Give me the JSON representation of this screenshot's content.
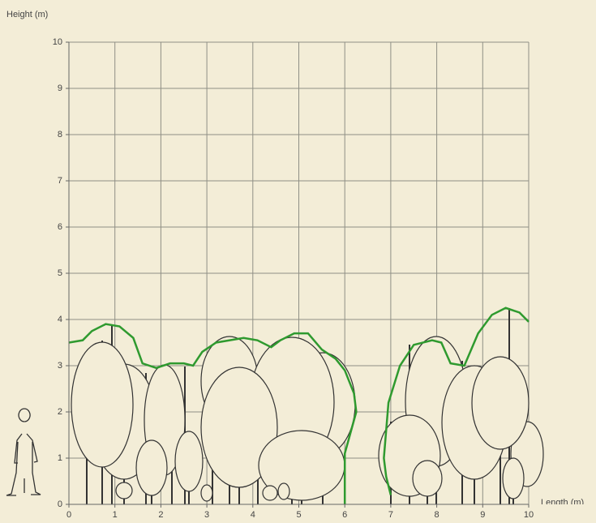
{
  "chart_data": {
    "type": "line",
    "y_label": "Height (m)",
    "x_label": "Length (m)",
    "xlim": [
      0,
      10
    ],
    "ylim": [
      0,
      10
    ],
    "xticks": [
      0,
      1,
      2,
      3,
      4,
      5,
      6,
      7,
      8,
      9,
      10
    ],
    "yticks": [
      0,
      1,
      2,
      3,
      4,
      5,
      6,
      7,
      8,
      9,
      10
    ],
    "grid": true,
    "color": "#2f9a2f",
    "x": [
      0,
      0.3,
      0.5,
      0.8,
      1.1,
      1.4,
      1.6,
      1.9,
      2.2,
      2.5,
      2.7,
      2.9,
      3.2,
      3.5,
      3.8,
      4.1,
      4.4,
      4.6,
      4.9,
      5.2,
      5.5,
      5.8,
      6.0,
      6.2,
      6.25,
      6.0,
      6.0,
      null,
      7.0,
      6.9,
      6.85,
      6.95,
      7.2,
      7.5,
      7.9,
      8.1,
      8.3,
      8.6,
      8.9,
      9.2,
      9.5,
      9.8,
      10
    ],
    "values": [
      3.5,
      3.55,
      3.75,
      3.9,
      3.85,
      3.6,
      3.05,
      2.95,
      3.05,
      3.05,
      3.0,
      3.3,
      3.5,
      3.55,
      3.6,
      3.55,
      3.4,
      3.55,
      3.7,
      3.7,
      3.35,
      3.15,
      2.9,
      2.4,
      2.0,
      1.1,
      0,
      null,
      0.2,
      0.6,
      1.0,
      2.2,
      3.0,
      3.45,
      3.55,
      3.5,
      3.05,
      3.0,
      3.7,
      4.1,
      4.25,
      4.15,
      3.95
    ]
  }
}
